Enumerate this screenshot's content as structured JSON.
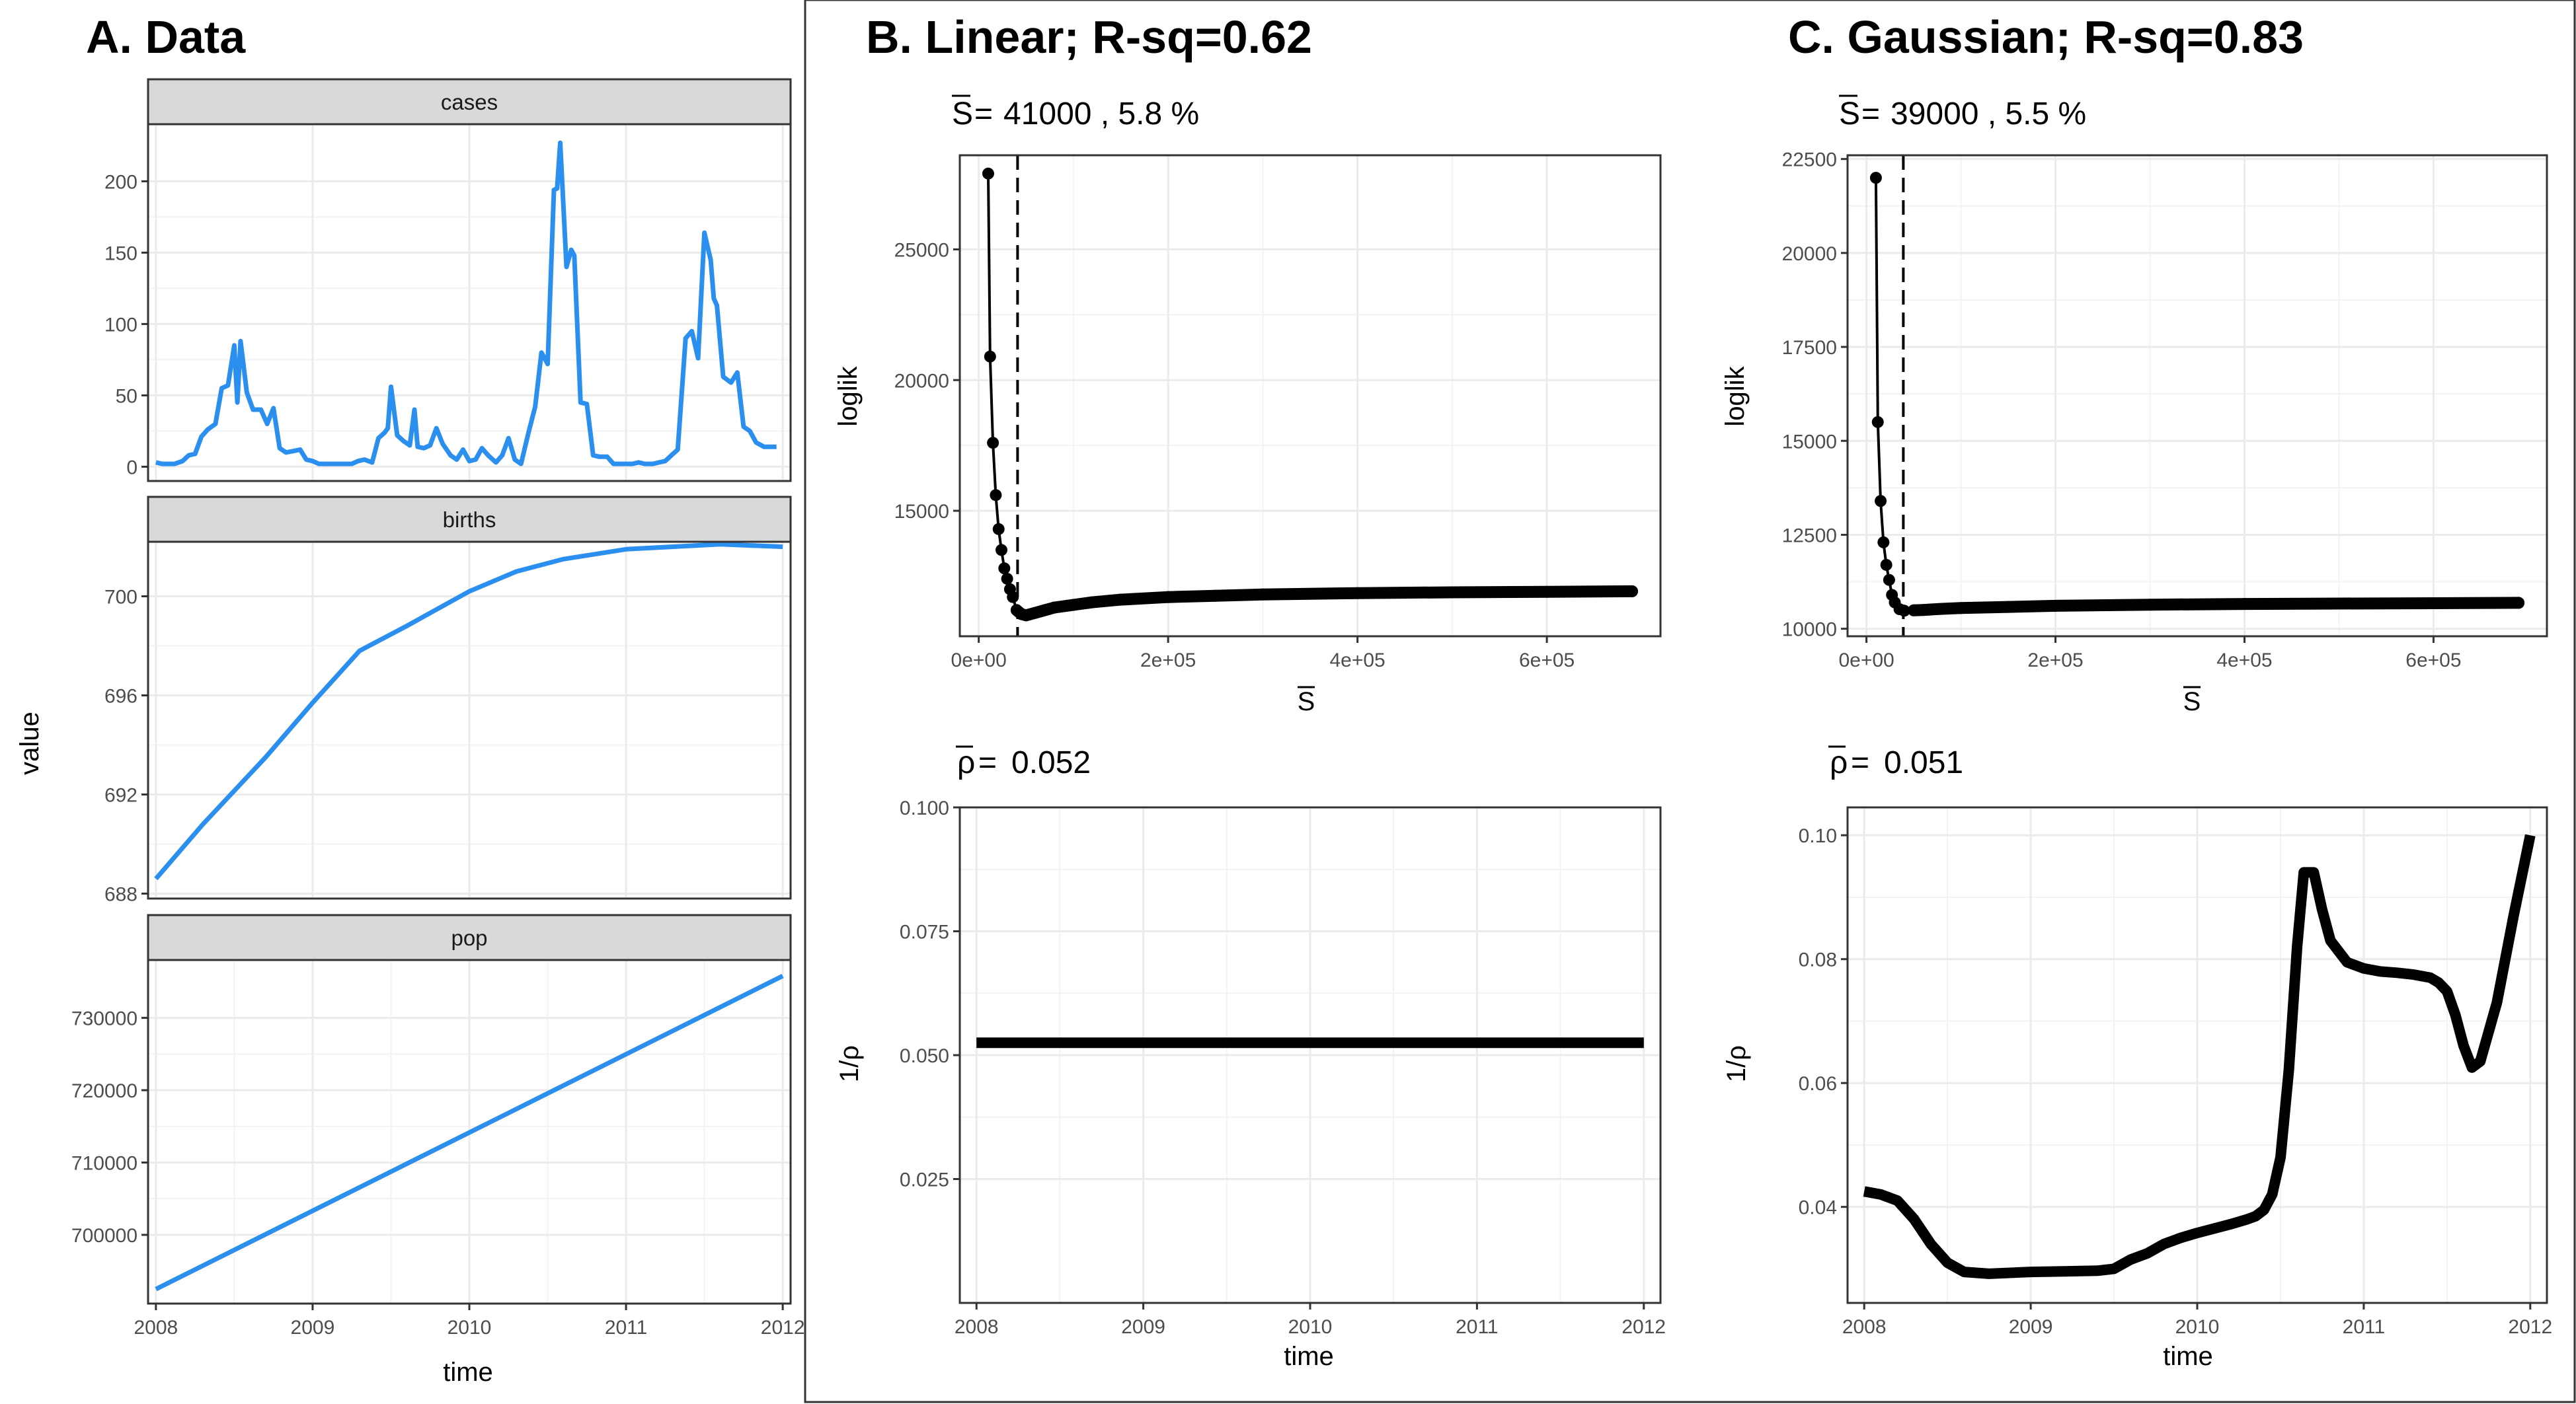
{
  "panels": {
    "A": {
      "title": "A. Data",
      "ylabel": "value",
      "xlabel": "time",
      "xticks": [
        "2008",
        "2009",
        "2010",
        "2011",
        "2012"
      ]
    },
    "B": {
      "title": "B. Linear; R-sq=0.62",
      "sbar_value": "41000 , 5.8 %",
      "rho_value": "0.052",
      "top_xlabel_symbol": "S",
      "top_ylabel": "loglik",
      "bottom_ylabel": "1/ρ",
      "bottom_xlabel": "time"
    },
    "C": {
      "title": "C. Gaussian; R-sq=0.83",
      "sbar_value": "39000 , 5.5 %",
      "rho_value": "0.051",
      "top_xlabel_symbol": "S",
      "top_ylabel": "loglik",
      "bottom_ylabel": "1/ρ",
      "bottom_xlabel": "time"
    }
  },
  "colors": {
    "series_blue": "#2b8fef",
    "line_black": "#000000",
    "strip_bg": "#d9d9d9",
    "grid": "#ebebeb"
  },
  "chart_data": [
    {
      "id": "A-cases",
      "type": "line",
      "facet": "cases",
      "xlim": [
        2007.95,
        2012.05
      ],
      "ylim": [
        -10,
        240
      ],
      "yticks": [
        0,
        50,
        100,
        150,
        200
      ],
      "x": [
        2008.0,
        2008.04,
        2008.08,
        2008.12,
        2008.17,
        2008.21,
        2008.25,
        2008.29,
        2008.33,
        2008.38,
        2008.42,
        2008.46,
        2008.5,
        2008.52,
        2008.54,
        2008.58,
        2008.62,
        2008.67,
        2008.71,
        2008.75,
        2008.79,
        2008.83,
        2008.88,
        2008.92,
        2008.96,
        2009.0,
        2009.04,
        2009.08,
        2009.12,
        2009.17,
        2009.21,
        2009.25,
        2009.29,
        2009.33,
        2009.38,
        2009.42,
        2009.46,
        2009.48,
        2009.5,
        2009.54,
        2009.58,
        2009.62,
        2009.65,
        2009.67,
        2009.71,
        2009.75,
        2009.79,
        2009.83,
        2009.88,
        2009.92,
        2009.96,
        2010.0,
        2010.04,
        2010.08,
        2010.12,
        2010.17,
        2010.21,
        2010.25,
        2010.29,
        2010.33,
        2010.38,
        2010.42,
        2010.46,
        2010.5,
        2010.54,
        2010.56,
        2010.58,
        2010.62,
        2010.65,
        2010.67,
        2010.71,
        2010.75,
        2010.79,
        2010.83,
        2010.88,
        2010.92,
        2010.96,
        2011.0,
        2011.04,
        2011.08,
        2011.12,
        2011.17,
        2011.21,
        2011.25,
        2011.29,
        2011.33,
        2011.38,
        2011.42,
        2011.46,
        2011.5,
        2011.54,
        2011.56,
        2011.58,
        2011.62,
        2011.67,
        2011.71,
        2011.75,
        2011.79,
        2011.83,
        2011.88,
        2011.92,
        2011.96
      ],
      "values": [
        3,
        2,
        2,
        2,
        4,
        8,
        9,
        21,
        26,
        30,
        55,
        57,
        85,
        45,
        88,
        52,
        40,
        40,
        30,
        41,
        13,
        10,
        11,
        12,
        5,
        4,
        2,
        2,
        2,
        2,
        2,
        2,
        4,
        5,
        3,
        20,
        24,
        27,
        56,
        22,
        18,
        15,
        40,
        14,
        13,
        15,
        27,
        16,
        8,
        5,
        12,
        4,
        5,
        13,
        8,
        3,
        8,
        20,
        5,
        2,
        25,
        42,
        80,
        72,
        194,
        195,
        227,
        140,
        152,
        148,
        45,
        44,
        8,
        7,
        7,
        2,
        2,
        2,
        2,
        3,
        2,
        2,
        3,
        4,
        8,
        12,
        90,
        95,
        76,
        164,
        145,
        118,
        113,
        63,
        59,
        66,
        28,
        25,
        17,
        14,
        14,
        14
      ]
    },
    {
      "id": "A-births",
      "type": "line",
      "facet": "births",
      "xlim": [
        2007.95,
        2012.05
      ],
      "ylim": [
        687.8,
        702.2
      ],
      "yticks": [
        688,
        692,
        696,
        700
      ],
      "x": [
        2008.0,
        2008.3,
        2008.7,
        2009.0,
        2009.3,
        2009.6,
        2010.0,
        2010.3,
        2010.6,
        2011.0,
        2011.3,
        2011.6,
        2012.0
      ],
      "values": [
        688.6,
        690.8,
        693.5,
        695.7,
        697.8,
        698.8,
        700.2,
        701.0,
        701.5,
        701.9,
        702.0,
        702.1,
        702.0
      ]
    },
    {
      "id": "A-pop",
      "type": "line",
      "facet": "pop",
      "xlim": [
        2007.95,
        2012.05
      ],
      "ylim": [
        690500,
        738000
      ],
      "yticks": [
        700000,
        710000,
        720000,
        730000
      ],
      "x": [
        2008.0,
        2012.0
      ],
      "values": [
        692500,
        735800
      ]
    },
    {
      "id": "B-top",
      "type": "line",
      "title": "B. Linear; R-sq=0.62",
      "xlabel": "S",
      "ylabel": "loglik",
      "xlim": [
        -20000,
        720000
      ],
      "ylim": [
        10200,
        28600
      ],
      "xticks": [
        0,
        200000,
        400000,
        600000
      ],
      "xtick_labels": [
        "0e+00",
        "2e+05",
        "4e+05",
        "6e+05"
      ],
      "yticks": [
        15000,
        20000,
        25000
      ],
      "vline": 41000,
      "x": [
        10000,
        12000,
        15000,
        18000,
        21000,
        24000,
        27000,
        30000,
        33000,
        36000,
        40000,
        45000,
        50000,
        60000,
        70000,
        80000,
        100000,
        120000,
        150000,
        200000,
        250000,
        300000,
        400000,
        500000,
        600000,
        690000
      ],
      "values": [
        27900,
        20900,
        17600,
        15600,
        14300,
        13500,
        12800,
        12400,
        12000,
        11700,
        11200,
        11050,
        11000,
        11100,
        11200,
        11300,
        11400,
        11500,
        11600,
        11700,
        11750,
        11800,
        11850,
        11880,
        11900,
        11920
      ]
    },
    {
      "id": "B-bottom",
      "type": "line",
      "xlabel": "time",
      "ylabel": "1/ρ",
      "xlim": [
        2007.9,
        2012.1
      ],
      "ylim": [
        0.0,
        0.1
      ],
      "xticks": [
        2008,
        2009,
        2010,
        2011,
        2012
      ],
      "yticks": [
        0.025,
        0.05,
        0.075,
        0.1
      ],
      "ytick_labels": [
        "0.025",
        "0.050",
        "0.075",
        "0.100"
      ],
      "x": [
        2008.0,
        2012.0
      ],
      "values": [
        0.0525,
        0.0525
      ]
    },
    {
      "id": "C-top",
      "type": "line",
      "title": "C. Gaussian; R-sq=0.83",
      "xlabel": "S",
      "ylabel": "loglik",
      "xlim": [
        -20000,
        720000
      ],
      "ylim": [
        9800,
        22600
      ],
      "xticks": [
        0,
        200000,
        400000,
        600000
      ],
      "xtick_labels": [
        "0e+00",
        "2e+05",
        "4e+05",
        "6e+05"
      ],
      "yticks": [
        10000,
        12500,
        15000,
        17500,
        20000,
        22500
      ],
      "vline": 39000,
      "x": [
        10000,
        12000,
        15000,
        18000,
        21000,
        24000,
        27000,
        30000,
        35000,
        40000,
        50000,
        60000,
        80000,
        100000,
        150000,
        200000,
        300000,
        400000,
        500000,
        600000,
        690000
      ],
      "values": [
        22000,
        15500,
        13400,
        12300,
        11700,
        11300,
        10900,
        10700,
        10520,
        10480,
        10490,
        10500,
        10530,
        10550,
        10580,
        10610,
        10640,
        10660,
        10670,
        10680,
        10690
      ]
    },
    {
      "id": "C-bottom",
      "type": "line",
      "xlabel": "time",
      "ylabel": "1/ρ",
      "xlim": [
        2007.9,
        2012.1
      ],
      "ylim": [
        0.0245,
        0.1045
      ],
      "xticks": [
        2008,
        2009,
        2010,
        2011,
        2012
      ],
      "yticks": [
        0.04,
        0.06,
        0.08,
        0.1
      ],
      "ytick_labels": [
        "0.04",
        "0.06",
        "0.08",
        "0.10"
      ],
      "x": [
        2008.0,
        2008.1,
        2008.2,
        2008.3,
        2008.4,
        2008.5,
        2008.6,
        2008.75,
        2009.0,
        2009.2,
        2009.4,
        2009.5,
        2009.6,
        2009.7,
        2009.8,
        2009.9,
        2010.0,
        2010.1,
        2010.2,
        2010.3,
        2010.35,
        2010.4,
        2010.45,
        2010.5,
        2010.55,
        2010.6,
        2010.64,
        2010.7,
        2010.75,
        2010.8,
        2010.9,
        2011.0,
        2011.1,
        2011.2,
        2011.3,
        2011.4,
        2011.45,
        2011.5,
        2011.55,
        2011.6,
        2011.65,
        2011.7,
        2011.8,
        2011.9,
        2012.0
      ],
      "values": [
        0.0425,
        0.042,
        0.041,
        0.038,
        0.034,
        0.031,
        0.0295,
        0.0292,
        0.0295,
        0.0296,
        0.0297,
        0.03,
        0.0315,
        0.0325,
        0.034,
        0.035,
        0.0358,
        0.0365,
        0.0372,
        0.038,
        0.0385,
        0.0395,
        0.042,
        0.048,
        0.062,
        0.082,
        0.094,
        0.094,
        0.088,
        0.083,
        0.0795,
        0.0785,
        0.078,
        0.0778,
        0.0775,
        0.077,
        0.0762,
        0.0748,
        0.071,
        0.066,
        0.0625,
        0.0635,
        0.073,
        0.087,
        0.1
      ]
    }
  ]
}
